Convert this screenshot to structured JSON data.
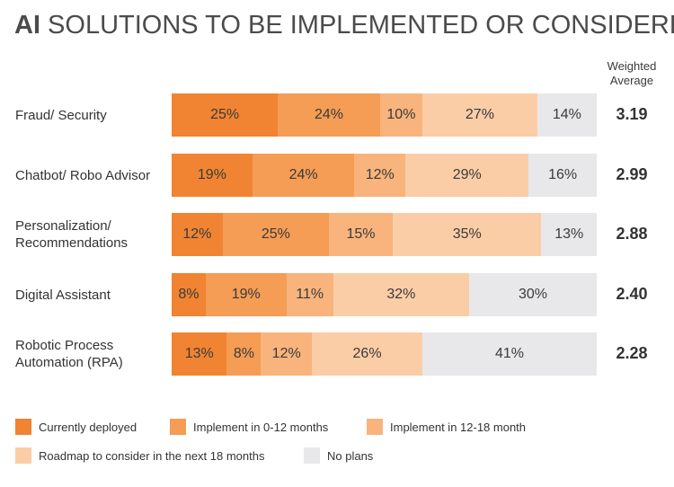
{
  "title_bold": "AI",
  "title_rest": " SOLUTIONS TO BE IMPLEMENTED OR CONSIDERED",
  "wa_header": [
    "Weighted",
    "Average"
  ],
  "colors": [
    "#f08432",
    "#f59c55",
    "#f8b47c",
    "#fbcda6",
    "#e8e8ea"
  ],
  "chart_data": {
    "type": "bar",
    "orientation": "horizontal",
    "stacked": true,
    "title": "AI SOLUTIONS TO BE IMPLEMENTED OR CONSIDERED",
    "categories": [
      [
        "Fraud/ Security"
      ],
      [
        "Chatbot/ Robo Advisor"
      ],
      [
        "Personalization/",
        "Recommendations"
      ],
      [
        "Digital Assistant"
      ],
      [
        "Robotic Process",
        "Automation (RPA)"
      ]
    ],
    "series": [
      {
        "name": "Currently deployed",
        "values": [
          25,
          19,
          12,
          8,
          13
        ]
      },
      {
        "name": "Implement in 0-12 months",
        "values": [
          24,
          24,
          25,
          19,
          8
        ]
      },
      {
        "name": "Implement in 12-18 month",
        "values": [
          10,
          12,
          15,
          11,
          12
        ]
      },
      {
        "name": "Roadmap to consider in the next 18 months",
        "values": [
          27,
          29,
          35,
          32,
          26
        ]
      },
      {
        "name": "No plans",
        "values": [
          14,
          16,
          13,
          30,
          41
        ]
      }
    ],
    "weighted_average": [
      "3.19",
      "2.99",
      "2.88",
      "2.40",
      "2.28"
    ],
    "legend": "bottom"
  }
}
